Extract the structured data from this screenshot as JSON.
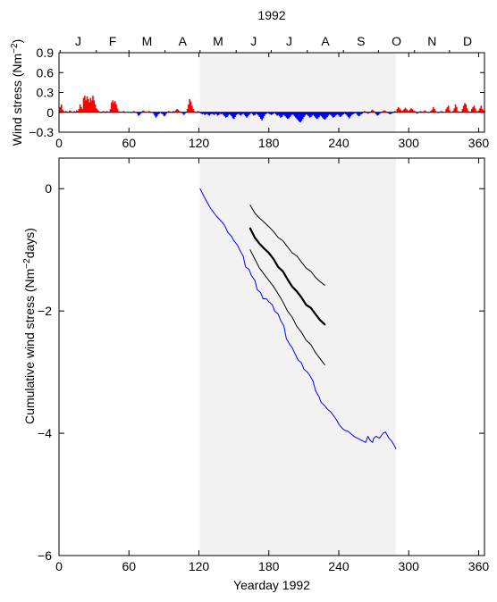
{
  "chart_data": [
    {
      "type": "bar",
      "title": "1992",
      "ylabel": "Wind stress (Nm",
      "ylabel_sup": "−2",
      "ylabel_end": ")",
      "xlim": [
        0,
        365
      ],
      "ylim": [
        -0.3,
        0.9
      ],
      "x_ticks": [
        0,
        60,
        120,
        180,
        240,
        300,
        360
      ],
      "y_ticks": [
        -0.3,
        0,
        0.3,
        0.6,
        0.9
      ],
      "y_tick_labels": [
        "−0.3",
        "0",
        "0.3",
        "0.6",
        "0.9"
      ],
      "months": [
        "J",
        "F",
        "M",
        "A",
        "M",
        "J",
        "J",
        "A",
        "S",
        "O",
        "N",
        "D"
      ],
      "shaded_range": [
        121,
        289
      ],
      "positive_color": "#ff0000",
      "negative_color": "#0000ff",
      "series": [
        {
          "x": [
            1,
            2,
            3,
            4,
            5,
            6,
            7,
            8,
            9,
            10,
            11,
            12,
            13,
            14,
            15,
            16,
            17,
            18,
            19,
            20,
            21,
            22,
            23,
            24,
            25,
            26,
            27,
            28,
            29,
            30,
            31,
            32,
            33,
            34,
            35,
            36,
            37,
            38,
            39,
            40,
            41,
            42,
            43,
            44,
            45,
            46,
            47,
            48,
            49,
            50,
            51,
            52,
            53,
            54,
            55,
            56,
            57,
            58,
            59,
            60,
            61,
            62,
            63,
            64,
            65,
            66,
            67,
            68,
            69,
            70,
            71,
            72,
            73,
            74,
            75,
            76,
            77,
            78,
            79,
            80,
            81,
            82,
            83,
            84,
            85,
            86,
            87,
            88,
            89,
            90,
            91,
            92,
            93,
            94,
            95,
            96,
            97,
            98,
            99,
            100,
            101,
            102,
            103,
            104,
            105,
            106,
            107,
            108,
            109,
            110,
            111,
            112,
            113,
            114,
            115,
            116,
            117,
            118,
            119,
            120
          ],
          "values": [
            0.08,
            0.12,
            0.04,
            0.02,
            0.01,
            0.02,
            0.01,
            0.0,
            0.03,
            0.02,
            0.01,
            0.0,
            0.02,
            0.01,
            0.03,
            0.02,
            0.05,
            0.12,
            0.08,
            0.05,
            0.22,
            0.25,
            0.18,
            0.24,
            0.2,
            0.15,
            0.22,
            0.18,
            0.25,
            0.18,
            0.12,
            0.06,
            0.04,
            0.02,
            0.0,
            -0.01,
            0.01,
            0.02,
            0.0,
            0.01,
            0.02,
            0.0,
            0.01,
            0.05,
            0.15,
            0.18,
            0.14,
            0.17,
            0.12,
            0.06,
            0.02,
            0.0,
            0.01,
            0.0,
            0.02,
            0.01,
            0.0,
            0.0,
            0.01,
            0.0,
            0.0,
            -0.01,
            0.0,
            0.02,
            0.01,
            0.0,
            -0.02,
            -0.05,
            -0.04,
            -0.02,
            0.01,
            0.03,
            0.02,
            0.0,
            0.01,
            0.0,
            0.02,
            0.01,
            -0.01,
            0.0,
            -0.02,
            -0.05,
            -0.08,
            -0.06,
            -0.03,
            -0.02,
            0.0,
            -0.02,
            -0.03,
            -0.06,
            -0.05,
            -0.02,
            0.0,
            0.02,
            0.01,
            0.0,
            -0.01,
            0.02,
            0.01,
            0.03,
            0.05,
            0.04,
            0.02,
            0.01,
            0.0,
            -0.02,
            -0.04,
            -0.02,
            0.01,
            0.05,
            0.12,
            0.2,
            0.16,
            0.1,
            0.05,
            0.02,
            0.0,
            -0.01,
            0.02,
            0.01
          ]
        },
        {
          "x": [
            121,
            122,
            123,
            124,
            125,
            126,
            127,
            128,
            129,
            130,
            131,
            132,
            133,
            134,
            135,
            136,
            137,
            138,
            139,
            140,
            141,
            142,
            143,
            144,
            145,
            146,
            147,
            148,
            149,
            150,
            151,
            152,
            153,
            154,
            155,
            156,
            157,
            158,
            159,
            160,
            161,
            162,
            163,
            164,
            165,
            166,
            167,
            168,
            169,
            170,
            171,
            172,
            173,
            174,
            175,
            176,
            177,
            178,
            179,
            180,
            181,
            182,
            183,
            184,
            185,
            186,
            187,
            188,
            189,
            190,
            191,
            192,
            193,
            194,
            195,
            196,
            197,
            198,
            199,
            200,
            201,
            202,
            203,
            204,
            205,
            206,
            207,
            208,
            209,
            210,
            211,
            212,
            213,
            214,
            215,
            216,
            217,
            218,
            219,
            220,
            221,
            222,
            223,
            224,
            225,
            226,
            227,
            228,
            229,
            230,
            231,
            232,
            233,
            234,
            235,
            236,
            237,
            238,
            239,
            240,
            241,
            242,
            243,
            244,
            245,
            246,
            247,
            248,
            249,
            250,
            251,
            252,
            253,
            254,
            255,
            256,
            257,
            258,
            259,
            260,
            261,
            262,
            263,
            264,
            265,
            266,
            267,
            268,
            269,
            270,
            271,
            272,
            273,
            274,
            275,
            276,
            277,
            278,
            279,
            280,
            281,
            282,
            283,
            284,
            285,
            286,
            287,
            288,
            289
          ],
          "values": [
            -0.01,
            -0.02,
            -0.03,
            -0.02,
            -0.04,
            -0.03,
            -0.02,
            -0.04,
            -0.05,
            -0.03,
            -0.02,
            -0.03,
            -0.04,
            -0.02,
            -0.03,
            -0.05,
            -0.04,
            -0.02,
            -0.03,
            -0.02,
            -0.04,
            -0.06,
            -0.08,
            -0.07,
            -0.05,
            -0.03,
            -0.04,
            -0.06,
            -0.09,
            -0.1,
            -0.07,
            -0.04,
            -0.03,
            -0.02,
            -0.04,
            -0.05,
            -0.03,
            -0.02,
            -0.04,
            -0.06,
            -0.08,
            -0.06,
            -0.04,
            -0.02,
            -0.01,
            -0.03,
            -0.05,
            -0.04,
            -0.02,
            -0.03,
            -0.05,
            -0.07,
            -0.1,
            -0.12,
            -0.09,
            -0.06,
            -0.03,
            -0.02,
            -0.01,
            -0.02,
            -0.03,
            -0.04,
            -0.03,
            -0.02,
            -0.01,
            -0.03,
            -0.05,
            -0.04,
            -0.06,
            -0.08,
            -0.07,
            -0.05,
            -0.04,
            -0.06,
            -0.08,
            -0.1,
            -0.09,
            -0.07,
            -0.05,
            -0.03,
            -0.04,
            -0.06,
            -0.08,
            -0.1,
            -0.12,
            -0.14,
            -0.15,
            -0.13,
            -0.1,
            -0.07,
            -0.05,
            -0.03,
            -0.04,
            -0.06,
            -0.08,
            -0.07,
            -0.05,
            -0.04,
            -0.06,
            -0.08,
            -0.1,
            -0.09,
            -0.07,
            -0.05,
            -0.06,
            -0.08,
            -0.1,
            -0.11,
            -0.09,
            -0.07,
            -0.05,
            -0.03,
            -0.04,
            -0.06,
            -0.08,
            -0.07,
            -0.05,
            -0.04,
            -0.03,
            -0.05,
            -0.07,
            -0.06,
            -0.04,
            -0.03,
            -0.02,
            -0.03,
            -0.05,
            -0.07,
            -0.09,
            -0.06,
            -0.04,
            -0.03,
            -0.02,
            -0.01,
            -0.02,
            -0.04,
            -0.06,
            -0.05,
            -0.03,
            -0.02,
            0.01,
            0.02,
            0.01,
            -0.01,
            -0.02,
            -0.01,
            0.01,
            0.03,
            0.04,
            0.02,
            -0.01,
            -0.03,
            -0.05,
            -0.04,
            -0.02,
            -0.01,
            0.01,
            0.02,
            0.03,
            0.02,
            0.01,
            -0.01,
            -0.02,
            -0.03,
            -0.02,
            -0.01,
            0.01,
            0.02,
            0.01
          ]
        },
        {
          "x": [
            290,
            291,
            292,
            293,
            294,
            295,
            296,
            297,
            298,
            299,
            300,
            301,
            302,
            303,
            304,
            305,
            306,
            307,
            308,
            309,
            310,
            311,
            312,
            313,
            314,
            315,
            316,
            317,
            318,
            319,
            320,
            321,
            322,
            323,
            324,
            325,
            326,
            327,
            328,
            329,
            330,
            331,
            332,
            333,
            334,
            335,
            336,
            337,
            338,
            339,
            340,
            341,
            342,
            343,
            344,
            345,
            346,
            347,
            348,
            349,
            350,
            351,
            352,
            353,
            354,
            355,
            356,
            357,
            358,
            359,
            360,
            361,
            362,
            363,
            364,
            365
          ],
          "values": [
            0.05,
            0.08,
            0.06,
            0.04,
            0.02,
            0.03,
            0.05,
            0.07,
            0.05,
            0.03,
            0.02,
            0.04,
            0.06,
            0.05,
            0.03,
            0.02,
            0.0,
            -0.02,
            -0.01,
            0.0,
            0.02,
            0.01,
            0.0,
            0.02,
            0.03,
            0.01,
            0.0,
            -0.01,
            0.0,
            0.02,
            0.04,
            0.08,
            0.05,
            0.02,
            0.0,
            -0.01,
            0.01,
            0.0,
            0.02,
            0.01,
            0.0,
            0.0,
            0.05,
            0.08,
            0.1,
            0.03,
            0.0,
            0.0,
            0.02,
            0.06,
            0.12,
            0.08,
            0.02,
            0.0,
            0.01,
            0.0,
            0.05,
            0.1,
            0.14,
            0.12,
            0.06,
            0.02,
            0.0,
            0.01,
            0.05,
            0.08,
            0.1,
            0.06,
            0.02,
            0.0,
            0.03,
            0.06,
            0.1,
            0.05,
            0.03,
            0.01
          ]
        }
      ]
    },
    {
      "type": "line",
      "xlabel": "Yearday 1992",
      "ylabel": "Cumulative wind stress (Nm",
      "ylabel_sup": "−2",
      "ylabel_end": "days)",
      "xlim": [
        0,
        365
      ],
      "ylim": [
        -6,
        0.5
      ],
      "x_ticks": [
        0,
        60,
        120,
        180,
        240,
        300,
        360
      ],
      "y_ticks": [
        0,
        -2,
        -4,
        -6
      ],
      "y_tick_labels": [
        "0",
        "−2",
        "−4",
        "−6"
      ],
      "shaded_range": [
        121,
        289
      ],
      "series": [
        {
          "color": "#0000ff",
          "width": 1,
          "x": [
            121,
            125,
            130,
            135,
            140,
            142,
            145,
            148,
            150,
            153,
            155,
            158,
            160,
            163,
            165,
            168,
            170,
            173,
            175,
            178,
            180,
            183,
            185,
            188,
            190,
            193,
            195,
            198,
            200,
            203,
            205,
            208,
            210,
            213,
            215,
            218,
            220,
            223,
            225,
            228,
            230,
            233,
            235,
            238,
            240,
            243,
            245,
            248,
            250,
            253,
            255,
            258,
            260,
            263,
            265,
            267,
            269,
            270,
            272,
            275,
            278,
            280,
            283,
            285,
            287,
            289
          ],
          "values": [
            0.0,
            -0.15,
            -0.32,
            -0.45,
            -0.55,
            -0.6,
            -0.72,
            -0.78,
            -0.85,
            -0.92,
            -1.0,
            -1.1,
            -1.28,
            -1.32,
            -1.42,
            -1.5,
            -1.65,
            -1.7,
            -1.8,
            -1.8,
            -1.85,
            -1.9,
            -2.0,
            -2.05,
            -2.15,
            -2.25,
            -2.45,
            -2.55,
            -2.6,
            -2.72,
            -2.8,
            -2.85,
            -2.95,
            -3.0,
            -3.05,
            -3.15,
            -3.3,
            -3.4,
            -3.5,
            -3.55,
            -3.6,
            -3.65,
            -3.7,
            -3.78,
            -3.85,
            -3.92,
            -3.95,
            -3.97,
            -4.0,
            -4.05,
            -4.07,
            -4.1,
            -4.12,
            -4.15,
            -4.05,
            -4.12,
            -4.15,
            -4.08,
            -4.05,
            -4.08,
            -4.0,
            -3.98,
            -4.08,
            -4.12,
            -4.18,
            -4.25
          ]
        },
        {
          "color": "#000000",
          "width": 1,
          "x": [
            164,
            168,
            172,
            176,
            180,
            184,
            188,
            192,
            196,
            200,
            204,
            208,
            212,
            216,
            220,
            224,
            228
          ],
          "values": [
            -0.27,
            -0.4,
            -0.48,
            -0.55,
            -0.62,
            -0.7,
            -0.8,
            -0.85,
            -0.95,
            -1.05,
            -1.1,
            -1.2,
            -1.3,
            -1.35,
            -1.45,
            -1.52,
            -1.58
          ]
        },
        {
          "color": "#000000",
          "width": 2.2,
          "x": [
            164,
            168,
            172,
            176,
            180,
            184,
            188,
            192,
            196,
            200,
            204,
            208,
            212,
            216,
            220,
            224,
            228
          ],
          "values": [
            -0.65,
            -0.8,
            -0.9,
            -0.98,
            -1.05,
            -1.15,
            -1.28,
            -1.35,
            -1.48,
            -1.6,
            -1.68,
            -1.78,
            -1.9,
            -1.95,
            -2.05,
            -2.15,
            -2.22
          ]
        },
        {
          "color": "#000000",
          "width": 1,
          "x": [
            164,
            168,
            172,
            176,
            180,
            184,
            188,
            192,
            196,
            200,
            204,
            208,
            212,
            216,
            220,
            224,
            228
          ],
          "values": [
            -1.0,
            -1.15,
            -1.3,
            -1.4,
            -1.5,
            -1.6,
            -1.72,
            -1.85,
            -2.0,
            -2.1,
            -2.25,
            -2.35,
            -2.48,
            -2.55,
            -2.68,
            -2.78,
            -2.88
          ]
        }
      ]
    }
  ]
}
